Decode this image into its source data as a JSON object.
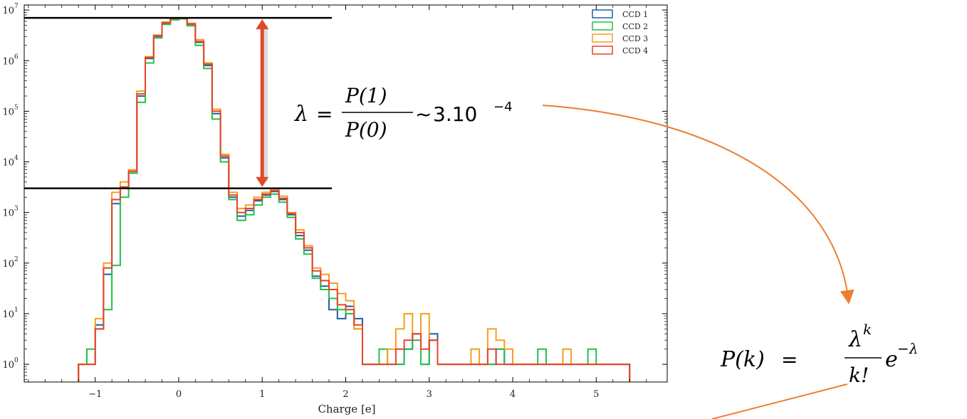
{
  "chart_data": {
    "type": "histogram",
    "xlabel": "Charge [e]",
    "ylabel": "",
    "xlim": [
      -1.85,
      5.85
    ],
    "ylim_log10": [
      -0.35,
      7.1
    ],
    "yscale": "log",
    "x_ticks": [
      -1,
      0,
      1,
      2,
      3,
      4,
      5
    ],
    "x_tick_labels": [
      "−1",
      "0",
      "1",
      "2",
      "3",
      "4",
      "5"
    ],
    "y_ticks": [
      {
        "base": "10",
        "exp": "0"
      },
      {
        "base": "10",
        "exp": "1"
      },
      {
        "base": "10",
        "exp": "2"
      },
      {
        "base": "10",
        "exp": "3"
      },
      {
        "base": "10",
        "exp": "4"
      },
      {
        "base": "10",
        "exp": "5"
      },
      {
        "base": "10",
        "exp": "6"
      },
      {
        "base": "10",
        "exp": "7"
      }
    ],
    "legend_position": "top-right",
    "series": [
      {
        "name": "CCD 1",
        "color": "#1f5fa8",
        "edges": [
          -1.2,
          -1.1,
          -1.0,
          -0.9,
          -0.8,
          -0.7,
          -0.6,
          -0.5,
          -0.4,
          -0.3,
          -0.2,
          -0.1,
          0.0,
          0.1,
          0.2,
          0.3,
          0.4,
          0.5,
          0.6,
          0.7,
          0.8,
          0.9,
          1.0,
          1.1,
          1.2,
          1.3,
          1.4,
          1.5,
          1.6,
          1.7,
          1.8,
          1.9,
          2.0,
          2.1,
          2.2,
          2.3,
          2.4,
          2.5,
          2.6,
          2.7,
          2.8,
          2.9,
          3.0,
          3.1,
          3.2,
          3.3,
          3.4,
          3.5,
          3.6,
          3.7,
          3.8,
          3.9,
          4.0,
          4.1,
          4.2,
          4.3,
          4.4,
          4.5,
          4.6,
          4.7,
          4.8,
          4.9,
          5.0,
          5.1,
          5.2,
          5.3,
          5.4
        ],
        "counts": [
          1,
          1,
          6,
          60,
          1500,
          3000,
          6000,
          200000.0,
          1100000.0,
          3000000.0,
          5500000.0,
          6600000.0,
          6800000.0,
          5200000.0,
          2300000.0,
          800000.0,
          90000.0,
          12000.0,
          2000,
          850,
          1100,
          1700,
          2200,
          2600,
          1800,
          900,
          350,
          180,
          55,
          35,
          12,
          8,
          14,
          8,
          1,
          1,
          1,
          1,
          1,
          2,
          4,
          1,
          4,
          1,
          1,
          1,
          1,
          1,
          1,
          1,
          2,
          1,
          1,
          1,
          1,
          1,
          1,
          1,
          1,
          1,
          1,
          1,
          1,
          1,
          1,
          1
        ]
      },
      {
        "name": "CCD 2",
        "color": "#22c14a",
        "edges": [
          -1.2,
          -1.1,
          -1.0,
          -0.9,
          -0.8,
          -0.7,
          -0.6,
          -0.5,
          -0.4,
          -0.3,
          -0.2,
          -0.1,
          0.0,
          0.1,
          0.2,
          0.3,
          0.4,
          0.5,
          0.6,
          0.7,
          0.8,
          0.9,
          1.0,
          1.1,
          1.2,
          1.3,
          1.4,
          1.5,
          1.6,
          1.7,
          1.8,
          1.9,
          2.0,
          2.1,
          2.2,
          2.3,
          2.4,
          2.5,
          2.6,
          2.7,
          2.8,
          2.9,
          3.0,
          3.1,
          3.2,
          3.3,
          3.4,
          3.5,
          3.6,
          3.7,
          3.8,
          3.9,
          4.0,
          4.1,
          4.2,
          4.3,
          4.4,
          4.5,
          4.6,
          4.7,
          4.8,
          4.9,
          5.0,
          5.1,
          5.2,
          5.3,
          5.4
        ],
        "counts": [
          1,
          2,
          5,
          12,
          90,
          2000,
          6000,
          150000.0,
          900000.0,
          2800000.0,
          5200000.0,
          6400000.0,
          6700000.0,
          4900000.0,
          2000000.0,
          700000.0,
          70000.0,
          10000.0,
          1800,
          700,
          900,
          1400,
          2000,
          2300,
          1600,
          800,
          300,
          150,
          50,
          30,
          20,
          12,
          10,
          5,
          1,
          1,
          2,
          1,
          1,
          2,
          3,
          1,
          3,
          1,
          1,
          1,
          1,
          1,
          1,
          1,
          2,
          1,
          1,
          1,
          1,
          2,
          1,
          1,
          1,
          1,
          1,
          2,
          1,
          1,
          1,
          1
        ]
      },
      {
        "name": "CCD 3",
        "color": "#f59f1c",
        "edges": [
          -1.2,
          -1.1,
          -1.0,
          -0.9,
          -0.8,
          -0.7,
          -0.6,
          -0.5,
          -0.4,
          -0.3,
          -0.2,
          -0.1,
          0.0,
          0.1,
          0.2,
          0.3,
          0.4,
          0.5,
          0.6,
          0.7,
          0.8,
          0.9,
          1.0,
          1.1,
          1.2,
          1.3,
          1.4,
          1.5,
          1.6,
          1.7,
          1.8,
          1.9,
          2.0,
          2.1,
          2.2,
          2.3,
          2.4,
          2.5,
          2.6,
          2.7,
          2.8,
          2.9,
          3.0,
          3.1,
          3.2,
          3.3,
          3.4,
          3.5,
          3.6,
          3.7,
          3.8,
          3.9,
          4.0,
          4.1,
          4.2,
          4.3,
          4.4,
          4.5,
          4.6,
          4.7,
          4.8,
          4.9,
          5.0,
          5.1,
          5.2,
          5.3,
          5.4
        ],
        "counts": [
          1,
          1,
          8,
          100,
          2500,
          4000,
          7000,
          250000.0,
          1200000.0,
          3200000.0,
          5800000.0,
          7000000.0,
          7000000.0,
          5500000.0,
          2600000.0,
          900000.0,
          110000.0,
          14000.0,
          2500,
          1200,
          1400,
          2000,
          2500,
          2900,
          2100,
          1000,
          450,
          220,
          80,
          60,
          40,
          25,
          18,
          5,
          1,
          1,
          1,
          2,
          5,
          10,
          4,
          10,
          3,
          1,
          1,
          1,
          1,
          2,
          1,
          5,
          3,
          2,
          1,
          1,
          1,
          1,
          1,
          1,
          2,
          1,
          1,
          1,
          1,
          1,
          1,
          1
        ]
      },
      {
        "name": "CCD 4",
        "color": "#e8422c",
        "edges": [
          -1.2,
          -1.1,
          -1.0,
          -0.9,
          -0.8,
          -0.7,
          -0.6,
          -0.5,
          -0.4,
          -0.3,
          -0.2,
          -0.1,
          0.0,
          0.1,
          0.2,
          0.3,
          0.4,
          0.5,
          0.6,
          0.7,
          0.8,
          0.9,
          1.0,
          1.1,
          1.2,
          1.3,
          1.4,
          1.5,
          1.6,
          1.7,
          1.8,
          1.9,
          2.0,
          2.1,
          2.2,
          2.3,
          2.4,
          2.5,
          2.6,
          2.7,
          2.8,
          2.9,
          3.0,
          3.1,
          3.2,
          3.3,
          3.4,
          3.5,
          3.6,
          3.7,
          3.8,
          3.9,
          4.0,
          4.1,
          4.2,
          4.3,
          4.4,
          4.5,
          4.6,
          4.7,
          4.8,
          4.9,
          5.0,
          5.1,
          5.2,
          5.3,
          5.4
        ],
        "counts": [
          1,
          1,
          5,
          80,
          1800,
          3200,
          6500,
          220000.0,
          1150000.0,
          3100000.0,
          5600000.0,
          6800000.0,
          6900000.0,
          5300000.0,
          2400000.0,
          850000.0,
          100000.0,
          13000.0,
          2200,
          1000,
          1200,
          1800,
          2300,
          2700,
          1900,
          950,
          400,
          200,
          70,
          45,
          30,
          15,
          12,
          6,
          1,
          1,
          1,
          1,
          2,
          3,
          4,
          2,
          3,
          1,
          1,
          1,
          1,
          1,
          1,
          2,
          1,
          1,
          1,
          1,
          1,
          1,
          1,
          1,
          1,
          1,
          1,
          1,
          1,
          1,
          1,
          1
        ]
      }
    ],
    "reference_lines": {
      "upper_level": 7000000.0,
      "lower_level": 3000,
      "arrow_x": 1.0
    }
  },
  "annotations": {
    "lambda_eq": {
      "lhs": "λ",
      "equals": "=",
      "num": "P(1)",
      "den": "P(0)",
      "approx": "~",
      "value_base": "3.10",
      "value_exp": "−4"
    },
    "poisson_eq": {
      "lhs": "P(k)",
      "equals": "=",
      "num_base": "λ",
      "num_exp": "k",
      "den": "k!",
      "exp_base": "e",
      "exp_exp": "−λ"
    },
    "colors": {
      "arrow_red": "#e04a2a",
      "connector_orange": "#ed7d31",
      "ref_line": "#000000"
    }
  }
}
